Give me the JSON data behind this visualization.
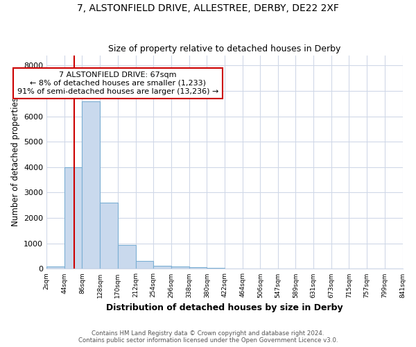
{
  "title1": "7, ALSTONFIELD DRIVE, ALLESTREE, DERBY, DE22 2XF",
  "title2": "Size of property relative to detached houses in Derby",
  "xlabel": "Distribution of detached houses by size in Derby",
  "ylabel": "Number of detached properties",
  "bin_edges": [
    2,
    44,
    86,
    128,
    170,
    212,
    254,
    296,
    338,
    380,
    422,
    464,
    506,
    547,
    589,
    631,
    673,
    715,
    757,
    799,
    841
  ],
  "bar_heights": [
    100,
    4000,
    6600,
    2600,
    950,
    320,
    120,
    80,
    60,
    50,
    0,
    0,
    0,
    0,
    0,
    0,
    0,
    0,
    0,
    0
  ],
  "bar_color": "#c9d9ed",
  "bar_edgecolor": "#7bafd4",
  "property_size": 67,
  "red_line_color": "#cc0000",
  "annotation_text": "7 ALSTONFIELD DRIVE: 67sqm\n← 8% of detached houses are smaller (1,233)\n91% of semi-detached houses are larger (13,236) →",
  "annotation_box_edgecolor": "#cc0000",
  "annotation_box_facecolor": "#ffffff",
  "ylim": [
    0,
    8400
  ],
  "yticks": [
    0,
    1000,
    2000,
    3000,
    4000,
    5000,
    6000,
    7000,
    8000
  ],
  "footnote1": "Contains HM Land Registry data © Crown copyright and database right 2024.",
  "footnote2": "Contains public sector information licensed under the Open Government Licence v3.0.",
  "bg_color": "#ffffff",
  "plot_bg_color": "#ffffff",
  "grid_color": "#d0d8e8"
}
